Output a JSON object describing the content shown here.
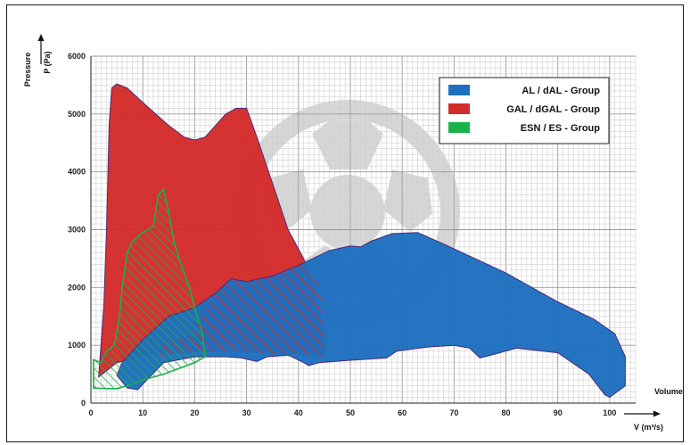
{
  "chart_data": {
    "type": "area",
    "title": "",
    "ylabel": "Pressure",
    "yunit": "P (Pa)",
    "xlabel": "Volume",
    "xunit": "V (m³/s)",
    "xlim": [
      0,
      105
    ],
    "ylim": [
      0,
      6000
    ],
    "xticks": [
      0,
      10,
      20,
      30,
      40,
      50,
      60,
      70,
      80,
      90,
      100
    ],
    "yticks": [
      0,
      1000,
      2000,
      3000,
      4000,
      5000,
      6000
    ],
    "grid": true,
    "legend_position": "top-right",
    "series": [
      {
        "name": "AL / dAL - Group",
        "color": "#1e6fbf",
        "hatched": false,
        "points": [
          [
            5,
            480
          ],
          [
            7,
            260
          ],
          [
            9,
            230
          ],
          [
            11,
            420
          ],
          [
            14,
            700
          ],
          [
            20,
            800
          ],
          [
            26,
            800
          ],
          [
            29,
            780
          ],
          [
            32,
            720
          ],
          [
            34,
            800
          ],
          [
            38,
            830
          ],
          [
            41,
            700
          ],
          [
            42,
            650
          ],
          [
            44,
            700
          ],
          [
            50,
            740
          ],
          [
            57,
            780
          ],
          [
            59,
            900
          ],
          [
            65,
            970
          ],
          [
            70,
            1000
          ],
          [
            73,
            950
          ],
          [
            75,
            780
          ],
          [
            78,
            850
          ],
          [
            82,
            950
          ],
          [
            90,
            870
          ],
          [
            96,
            500
          ],
          [
            99,
            150
          ],
          [
            100,
            100
          ],
          [
            103,
            300
          ],
          [
            103,
            800
          ],
          [
            101,
            1200
          ],
          [
            97,
            1450
          ],
          [
            90,
            1750
          ],
          [
            80,
            2250
          ],
          [
            68,
            2750
          ],
          [
            63,
            2950
          ],
          [
            58,
            2930
          ],
          [
            54,
            2800
          ],
          [
            52,
            2700
          ],
          [
            50,
            2720
          ],
          [
            46,
            2640
          ],
          [
            40,
            2380
          ],
          [
            35,
            2200
          ],
          [
            30,
            2100
          ],
          [
            27,
            2150
          ],
          [
            24,
            1900
          ],
          [
            20,
            1650
          ],
          [
            15,
            1500
          ],
          [
            10,
            1100
          ],
          [
            6,
            700
          ]
        ]
      },
      {
        "name": "GAL / dGAL - Group",
        "color": "#d42b2b",
        "hatched": false,
        "points": [
          [
            1.5,
            450
          ],
          [
            2.5,
            1700
          ],
          [
            3,
            3000
          ],
          [
            3.5,
            4800
          ],
          [
            4,
            5450
          ],
          [
            5,
            5520
          ],
          [
            7,
            5450
          ],
          [
            10,
            5200
          ],
          [
            15,
            4800
          ],
          [
            18,
            4600
          ],
          [
            20,
            4550
          ],
          [
            22,
            4600
          ],
          [
            24,
            4800
          ],
          [
            26,
            5000
          ],
          [
            28,
            5100
          ],
          [
            30,
            5100
          ],
          [
            32,
            4600
          ],
          [
            35,
            3800
          ],
          [
            38,
            3000
          ],
          [
            41,
            2500
          ],
          [
            43,
            2000
          ],
          [
            45,
            1200
          ],
          [
            45,
            800
          ],
          [
            40,
            850
          ],
          [
            35,
            850
          ],
          [
            28,
            900
          ],
          [
            22,
            900
          ],
          [
            15,
            850
          ],
          [
            10,
            800
          ],
          [
            5,
            700
          ]
        ]
      },
      {
        "name": "ESN / ES - Group",
        "color": "#19b24a",
        "hatched": true,
        "points": [
          [
            0.5,
            260
          ],
          [
            0.5,
            750
          ],
          [
            2,
            700
          ],
          [
            3,
            900
          ],
          [
            4.5,
            1000
          ],
          [
            5.5,
            1500
          ],
          [
            6,
            2000
          ],
          [
            7,
            2600
          ],
          [
            8,
            2800
          ],
          [
            10,
            2950
          ],
          [
            12,
            3050
          ],
          [
            13,
            3600
          ],
          [
            14,
            3700
          ],
          [
            15,
            3300
          ],
          [
            16,
            2800
          ],
          [
            17,
            2500
          ],
          [
            19,
            2000
          ],
          [
            20,
            1650
          ],
          [
            21.5,
            1200
          ],
          [
            22,
            800
          ],
          [
            20,
            700
          ],
          [
            17,
            600
          ],
          [
            14,
            500
          ],
          [
            10,
            400
          ],
          [
            7,
            300
          ],
          [
            5,
            250
          ],
          [
            3,
            250
          ]
        ]
      }
    ],
    "overlap_hatch": [
      [
        [
          14,
          1050
        ],
        [
          19,
          1150
        ],
        [
          24,
          1900
        ],
        [
          27,
          2150
        ],
        [
          30,
          2100
        ],
        [
          35,
          2200
        ],
        [
          40,
          2380
        ],
        [
          43,
          2300
        ],
        [
          44.5,
          1900
        ],
        [
          45,
          1200
        ],
        [
          45,
          800
        ],
        [
          40,
          850
        ],
        [
          35,
          850
        ],
        [
          28,
          900
        ],
        [
          22,
          900
        ],
        [
          16,
          850
        ],
        [
          13,
          780
        ]
      ]
    ]
  }
}
